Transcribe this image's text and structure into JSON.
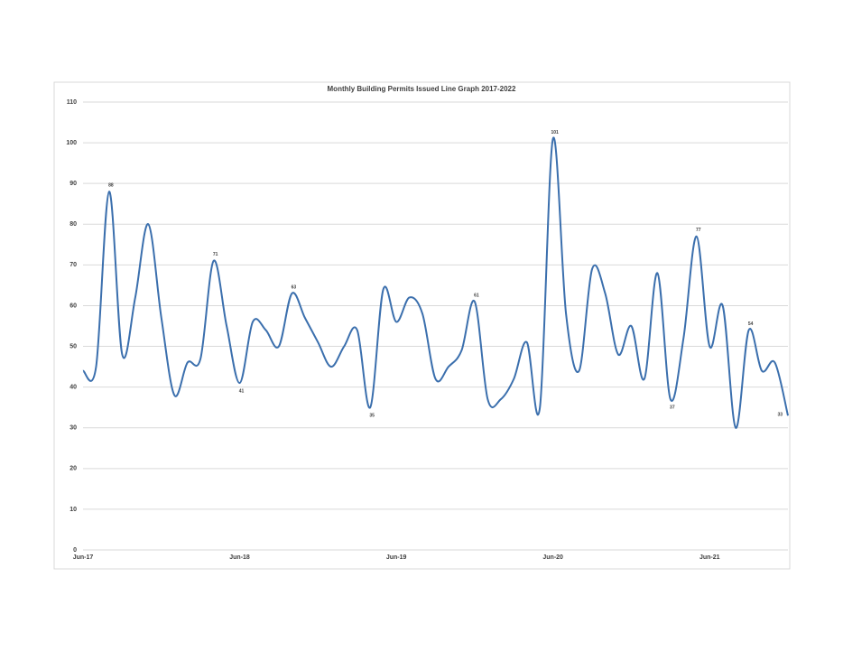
{
  "chart_data": {
    "type": "line",
    "title": "Monthly Building Permits Issued Line Graph 2017-2022",
    "categories": [
      "Jun-17",
      null,
      null,
      null,
      null,
      null,
      null,
      null,
      null,
      null,
      null,
      null,
      "Jun-18",
      null,
      null,
      null,
      null,
      null,
      null,
      null,
      null,
      null,
      null,
      null,
      "Jun-19",
      null,
      null,
      null,
      null,
      null,
      null,
      null,
      null,
      null,
      null,
      null,
      "Jun-20",
      null,
      null,
      null,
      null,
      null,
      null,
      null,
      null,
      null,
      null,
      null,
      "Jun-21",
      null,
      null,
      null,
      null,
      null,
      null
    ],
    "values": [
      44,
      45,
      88,
      48,
      62,
      80,
      57,
      38,
      46,
      47,
      71,
      55,
      41,
      56,
      54,
      50,
      63,
      57,
      51,
      45,
      50,
      54,
      35,
      64,
      56,
      62,
      58,
      42,
      45,
      49,
      61,
      37,
      37,
      42,
      51,
      35,
      101,
      58,
      44,
      69,
      63,
      48,
      55,
      42,
      68,
      37,
      52,
      77,
      50,
      60,
      30,
      54,
      44,
      46,
      33
    ],
    "value_labels": [
      null,
      null,
      "88",
      null,
      null,
      null,
      null,
      null,
      null,
      null,
      "71",
      null,
      "41",
      null,
      null,
      null,
      "63",
      null,
      null,
      null,
      null,
      null,
      "35",
      null,
      null,
      null,
      null,
      null,
      null,
      null,
      "61",
      null,
      null,
      null,
      null,
      null,
      "101",
      null,
      null,
      null,
      null,
      null,
      null,
      null,
      null,
      "37",
      null,
      "77",
      null,
      null,
      null,
      "54",
      null,
      null,
      "33"
    ],
    "color": "#3b6fad",
    "ylim": [
      0,
      110
    ],
    "yticks": [
      0,
      10,
      20,
      30,
      40,
      50,
      60,
      70,
      80,
      90,
      100,
      110
    ],
    "grid": true
  }
}
